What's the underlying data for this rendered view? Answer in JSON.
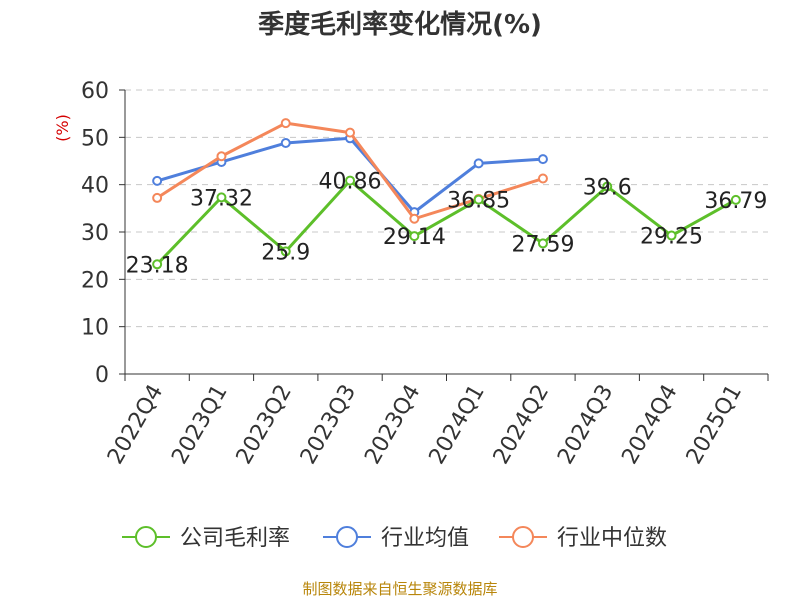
{
  "chart_data": {
    "type": "line",
    "title": "季度毛利率变化情况(%)",
    "ylabel": "(%)",
    "xlabel": "",
    "ylim": [
      0,
      60
    ],
    "yticks": [
      0,
      10,
      20,
      30,
      40,
      50,
      60
    ],
    "grid": true,
    "legend_position": "bottom",
    "categories": [
      "2022Q4",
      "2023Q1",
      "2023Q2",
      "2023Q3",
      "2023Q4",
      "2024Q1",
      "2024Q2",
      "2024Q3",
      "2024Q4",
      "2025Q1"
    ],
    "series": [
      {
        "name": "公司毛利率",
        "color": "#5dbf2a",
        "values": [
          23.18,
          37.32,
          25.9,
          40.86,
          29.14,
          36.85,
          27.59,
          39.6,
          29.25,
          36.79
        ],
        "labels": [
          "23.18",
          "37.32",
          "25.9",
          "40.86",
          "29.14",
          "36.85",
          "27.59",
          "39.6",
          "29.25",
          "36.79"
        ]
      },
      {
        "name": "行业均值",
        "color": "#4f7fdc",
        "values": [
          40.8,
          44.8,
          48.8,
          49.8,
          34.2,
          44.5,
          45.4,
          null,
          null,
          null
        ]
      },
      {
        "name": "行业中位数",
        "color": "#f4875a",
        "values": [
          37.2,
          46.0,
          53.0,
          51.0,
          32.8,
          37.0,
          41.3,
          null,
          null,
          null
        ]
      }
    ]
  },
  "source_note": "制图数据来自恒生聚源数据库"
}
